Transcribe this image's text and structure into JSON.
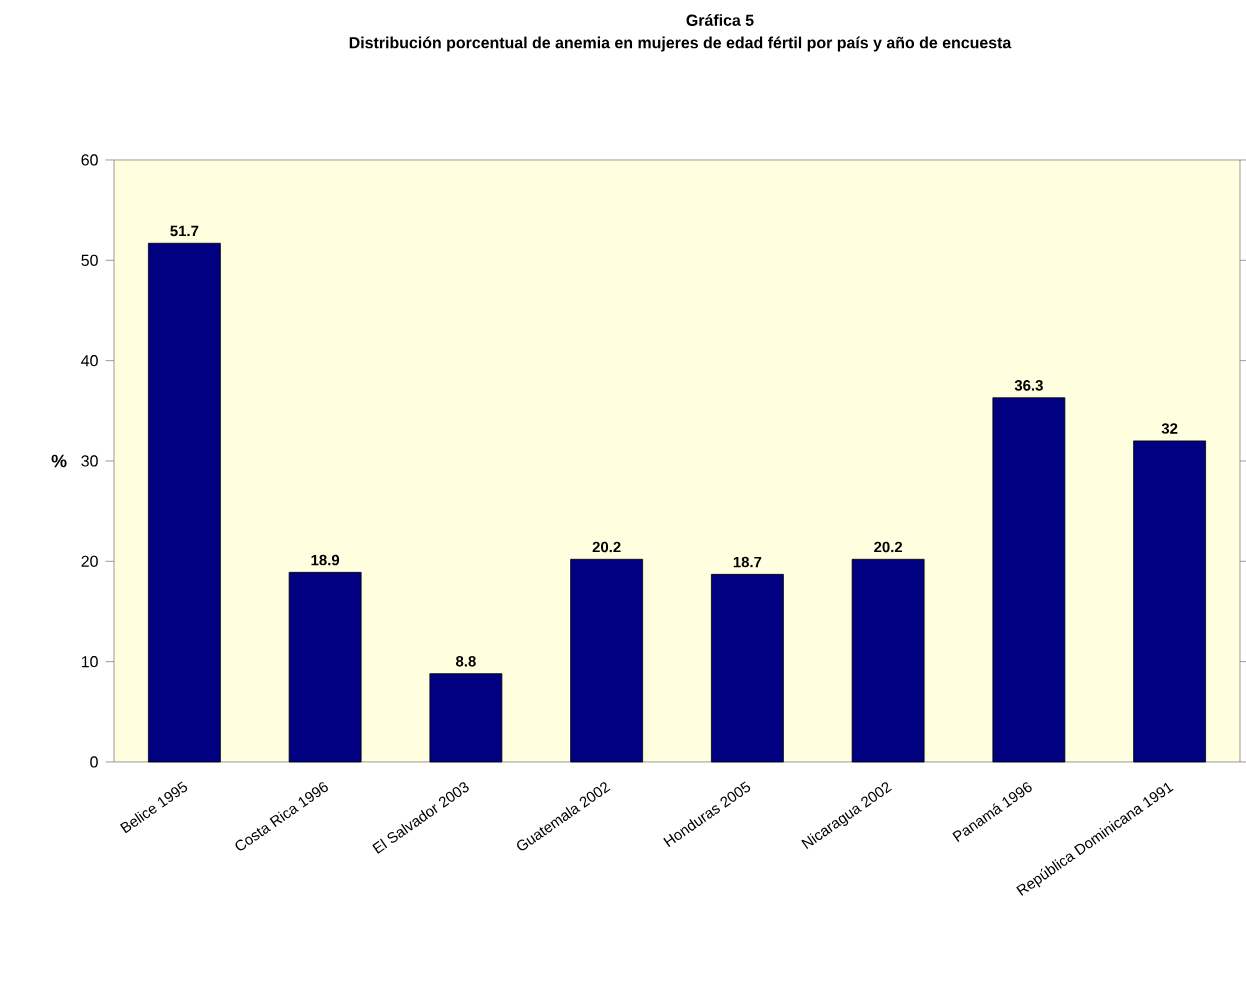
{
  "chart_data": {
    "type": "bar",
    "title": "Gráfica 5",
    "subtitle": "Distribución porcentual de anemia en mujeres de edad fértil por país y año de encuesta",
    "ylabel": "%",
    "categories": [
      "Belice 1995",
      "Costa Rica 1996",
      "El Salvador 2003",
      "Guatemala 2002",
      "Honduras 2005",
      "Nicaragua 2002",
      "Panamá 1996",
      "República Dominicana 1991"
    ],
    "values": [
      51.7,
      18.9,
      8.8,
      20.2,
      18.7,
      20.2,
      36.3,
      32
    ],
    "color": "#000080",
    "ylim": [
      0,
      60
    ],
    "yticks": [
      0,
      10,
      20,
      30,
      40,
      50,
      60
    ],
    "data_labels": true,
    "grid": false
  }
}
